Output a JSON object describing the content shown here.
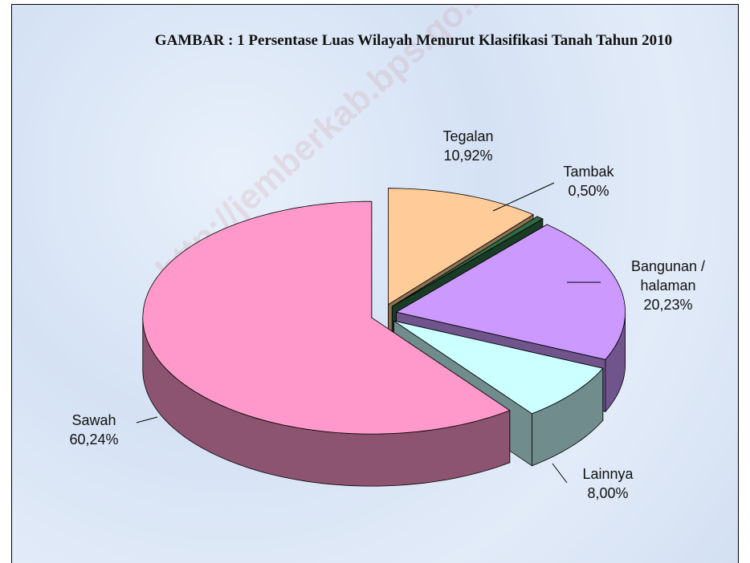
{
  "chart_data": {
    "type": "pie3d",
    "title": "GAMBAR :  1 Persentase Luas Wilayah Menurut  Klasifikasi Tanah Tahun 2010",
    "watermark": "http://jemberkab.bps.go.id",
    "categories": [
      "Tegalan",
      "Tambak",
      "Bangunan / halaman",
      "Lainnya",
      "Sawah"
    ],
    "values": [
      10.92,
      0.5,
      20.23,
      8.0,
      60.24
    ],
    "value_labels": [
      "10,92%",
      "0,50%",
      "20,23%",
      "8,00%",
      "60,24%"
    ],
    "colors": [
      "#ffcc99",
      "#2f6b45",
      "#cc99ff",
      "#ccffff",
      "#ff99cc"
    ],
    "exploded": true
  }
}
